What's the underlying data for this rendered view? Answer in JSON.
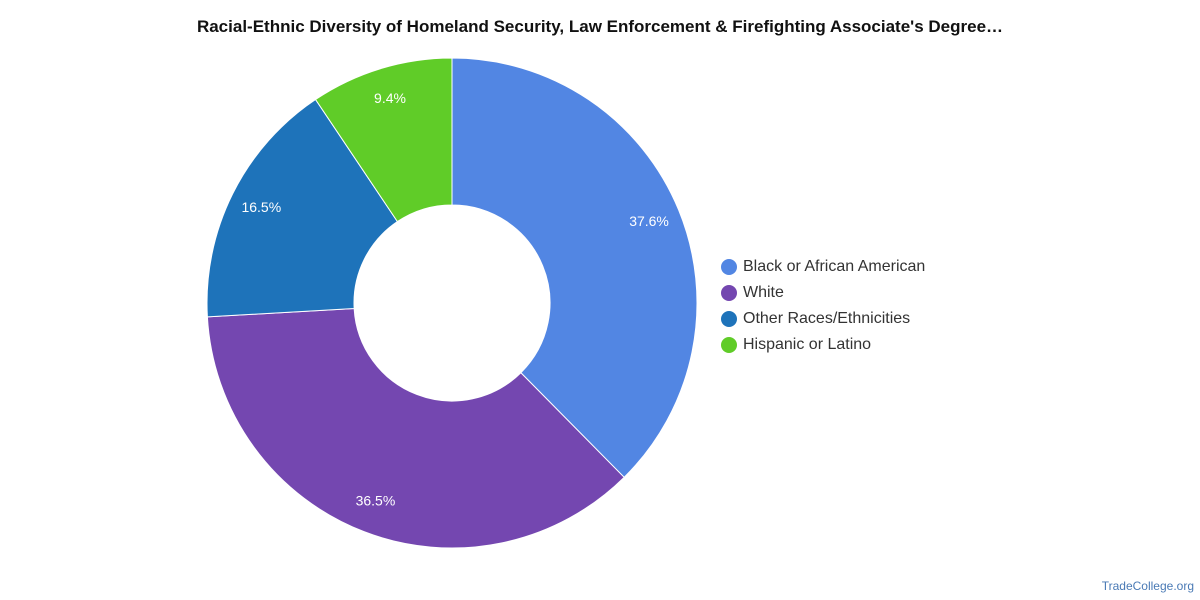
{
  "title": "Racial-Ethnic Diversity of Homeland Security, Law Enforcement & Firefighting Associate's Degree…",
  "footer": "TradeCollege.org",
  "chart_data": {
    "type": "pie",
    "donut": true,
    "legend_position": "right",
    "slices": [
      {
        "name": "Black or African American",
        "value": 37.6,
        "label": "37.6%",
        "color": "#5286e3"
      },
      {
        "name": "White",
        "value": 36.5,
        "label": "36.5%",
        "color": "#7447b0"
      },
      {
        "name": "Other Races/Ethnicities",
        "value": 16.5,
        "label": "16.5%",
        "color": "#1e73ba"
      },
      {
        "name": "Hispanic or Latino",
        "value": 9.4,
        "label": "9.4%",
        "color": "#60cc28"
      }
    ]
  }
}
